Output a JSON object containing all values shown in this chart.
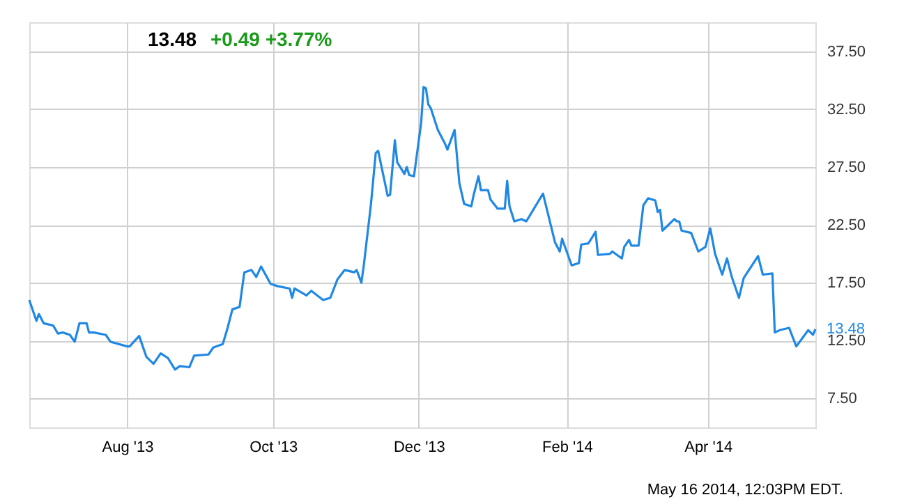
{
  "chart_data": {
    "type": "line",
    "title": "13.48",
    "subtitle": "+0.49  +3.77%",
    "annotations": [
      "May 16 2014, 12:03PM EDT.",
      {
        "text": "13.48",
        "x": "2014-05-16",
        "y": 13.48
      }
    ],
    "xlim": [
      "2013-06-21",
      "2014-05-16"
    ],
    "xticks": [
      {
        "value": "2013-08-01",
        "label": "Aug '13"
      },
      {
        "value": "2013-10-01",
        "label": "Oct '13"
      },
      {
        "value": "2013-12-01",
        "label": "Dec '13"
      },
      {
        "value": "2014-02-01",
        "label": "Feb '14"
      },
      {
        "value": "2014-04-01",
        "label": "Apr '14"
      }
    ],
    "ylim": [
      5,
      40
    ],
    "yticks": [
      {
        "value": 7.5,
        "label": "7.50"
      },
      {
        "value": 12.5,
        "label": "12.50"
      },
      {
        "value": 17.5,
        "label": "17.50"
      },
      {
        "value": 22.5,
        "label": "22.50"
      },
      {
        "value": 27.5,
        "label": "27.50"
      },
      {
        "value": 32.5,
        "label": "32.50"
      },
      {
        "value": 37.5,
        "label": "37.50"
      }
    ],
    "grid": true,
    "marker": "none",
    "line_style": "solid",
    "series": [
      {
        "color": "#1f88e5",
        "x": [
          "2013-06-21",
          "2013-06-24",
          "2013-06-25",
          "2013-06-27",
          "2013-07-01",
          "2013-07-03",
          "2013-07-05",
          "2013-07-08",
          "2013-07-10",
          "2013-07-12",
          "2013-07-15",
          "2013-07-16",
          "2013-07-18",
          "2013-07-23",
          "2013-07-25",
          "2013-08-01",
          "2013-08-02",
          "2013-08-06",
          "2013-08-09",
          "2013-08-12",
          "2013-08-15",
          "2013-08-18",
          "2013-08-21",
          "2013-08-23",
          "2013-08-27",
          "2013-08-29",
          "2013-09-04",
          "2013-09-06",
          "2013-09-10",
          "2013-09-12",
          "2013-09-14",
          "2013-09-17",
          "2013-09-19",
          "2013-09-22",
          "2013-09-24",
          "2013-09-26",
          "2013-09-30",
          "2013-10-03",
          "2013-10-08",
          "2013-10-09",
          "2013-10-10",
          "2013-10-15",
          "2013-10-17",
          "2013-10-22",
          "2013-10-25",
          "2013-10-28",
          "2013-10-31",
          "2013-11-04",
          "2013-11-05",
          "2013-11-07",
          "2013-11-08",
          "2013-11-11",
          "2013-11-13",
          "2013-11-14",
          "2013-11-18",
          "2013-11-19",
          "2013-11-21",
          "2013-11-22",
          "2013-11-25",
          "2013-11-26",
          "2013-11-27",
          "2013-11-29",
          "2013-12-02",
          "2013-12-03",
          "2013-12-04",
          "2013-12-05",
          "2013-12-06",
          "2013-12-09",
          "2013-12-12",
          "2013-12-13",
          "2013-12-16",
          "2013-12-18",
          "2013-12-20",
          "2013-12-23",
          "2013-12-24",
          "2013-12-26",
          "2013-12-27",
          "2013-12-30",
          "2013-12-31",
          "2014-01-03",
          "2014-01-06",
          "2014-01-07",
          "2014-01-08",
          "2014-01-10",
          "2014-01-13",
          "2014-01-15",
          "2014-01-22",
          "2014-01-27",
          "2014-01-29",
          "2014-01-30",
          "2014-02-03",
          "2014-02-06",
          "2014-02-07",
          "2014-02-10",
          "2014-02-13",
          "2014-02-14",
          "2014-02-19",
          "2014-02-20",
          "2014-02-24",
          "2014-02-25",
          "2014-02-27",
          "2014-02-28",
          "2014-03-03",
          "2014-03-05",
          "2014-03-07",
          "2014-03-10",
          "2014-03-11",
          "2014-03-12",
          "2014-03-13",
          "2014-03-14",
          "2014-03-18",
          "2014-03-19",
          "2014-03-20",
          "2014-03-21",
          "2014-03-25",
          "2014-03-28",
          "2014-03-31",
          "2014-04-02",
          "2014-04-04",
          "2014-04-07",
          "2014-04-09",
          "2014-04-11",
          "2014-04-14",
          "2014-04-16",
          "2014-04-22",
          "2014-04-24",
          "2014-04-28",
          "2014-04-29",
          "2014-05-01",
          "2014-05-05",
          "2014-05-08",
          "2014-05-13",
          "2014-05-15",
          "2014-05-16"
        ],
        "values": [
          16.0,
          14.2,
          14.8,
          14.0,
          13.8,
          13.1,
          13.2,
          13.0,
          12.4,
          14.0,
          14.0,
          13.2,
          13.2,
          13.0,
          12.4,
          12.0,
          12.0,
          12.9,
          11.1,
          10.5,
          11.4,
          11.0,
          10.0,
          10.3,
          10.2,
          11.2,
          11.3,
          11.9,
          12.2,
          13.6,
          15.2,
          15.4,
          18.4,
          18.6,
          18.0,
          18.9,
          17.4,
          17.2,
          17.0,
          16.2,
          17.0,
          16.4,
          16.8,
          16.0,
          16.2,
          17.8,
          18.6,
          18.4,
          18.6,
          17.5,
          19.0,
          24.3,
          28.7,
          28.9,
          25.0,
          25.1,
          29.8,
          27.9,
          26.9,
          27.5,
          26.8,
          26.7,
          31.3,
          34.4,
          34.3,
          32.9,
          32.6,
          30.7,
          29.5,
          29.0,
          30.7,
          26.1,
          24.3,
          24.1,
          25.1,
          26.7,
          25.5,
          25.5,
          24.7,
          23.9,
          23.9,
          26.3,
          24.1,
          22.8,
          23.0,
          22.8,
          25.2,
          21.0,
          20.2,
          21.3,
          19.0,
          19.2,
          20.8,
          20.9,
          21.9,
          19.9,
          20.0,
          20.2,
          19.6,
          20.6,
          21.2,
          20.7,
          20.7,
          24.2,
          24.8,
          24.6,
          23.6,
          23.8,
          22.0,
          22.2,
          23.0,
          22.8,
          22.8,
          22.0,
          21.8,
          20.2,
          20.6,
          22.2,
          20.0,
          18.2,
          19.6,
          18.0,
          16.2,
          17.9,
          19.8,
          18.2,
          18.3,
          13.2,
          13.4,
          13.6,
          12.0,
          13.4,
          13.0,
          13.48
        ]
      }
    ]
  }
}
